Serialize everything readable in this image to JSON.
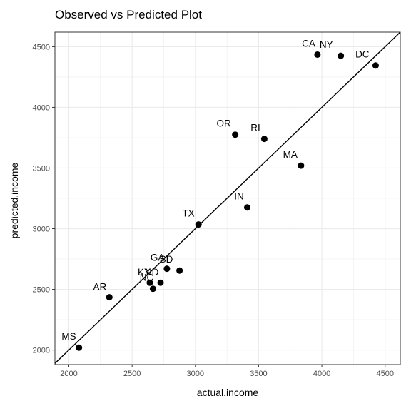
{
  "chart_data": {
    "type": "scatter",
    "title": "Observed vs Predicted Plot",
    "xlabel": "actual.income",
    "ylabel": "predicted.income",
    "xlim": [
      1890,
      4620
    ],
    "ylim": [
      1880,
      4620
    ],
    "x_ticks": [
      2000,
      2500,
      3000,
      3500,
      4000,
      4500
    ],
    "y_ticks": [
      2000,
      2500,
      3000,
      3500,
      4000,
      4500
    ],
    "grid": true,
    "reference_line": "y = x",
    "points": [
      {
        "label": "MS",
        "x": 2080,
        "y": 2020,
        "label_x": 2000,
        "label_y": 2085
      },
      {
        "label": "AR",
        "x": 2320,
        "y": 2435,
        "label_x": 2245,
        "label_y": 2495
      },
      {
        "label": "NC",
        "x": 2665,
        "y": 2505,
        "label_x": 2615,
        "label_y": 2570
      },
      {
        "label": "KY",
        "x": 2640,
        "y": 2555,
        "label_x": 2595,
        "label_y": 2615
      },
      {
        "label": "ND",
        "x": 2725,
        "y": 2555,
        "label_x": 2655,
        "label_y": 2615
      },
      {
        "label": "GA",
        "x": 2775,
        "y": 2670,
        "label_x": 2700,
        "label_y": 2735
      },
      {
        "label": "SD",
        "x": 2875,
        "y": 2655,
        "label_x": 2770,
        "label_y": 2720
      },
      {
        "label": "TX",
        "x": 3025,
        "y": 3035,
        "label_x": 2945,
        "label_y": 3100
      },
      {
        "label": "IN",
        "x": 3410,
        "y": 3175,
        "label_x": 3345,
        "label_y": 3240
      },
      {
        "label": "OR",
        "x": 3315,
        "y": 3775,
        "label_x": 3225,
        "label_y": 3840
      },
      {
        "label": "RI",
        "x": 3545,
        "y": 3740,
        "label_x": 3475,
        "label_y": 3805
      },
      {
        "label": "MA",
        "x": 3835,
        "y": 3520,
        "label_x": 3750,
        "label_y": 3585
      },
      {
        "label": "CA",
        "x": 3965,
        "y": 4435,
        "label_x": 3895,
        "label_y": 4500
      },
      {
        "label": "NY",
        "x": 4150,
        "y": 4425,
        "label_x": 4035,
        "label_y": 4490
      },
      {
        "label": "DC",
        "x": 4425,
        "y": 4345,
        "label_x": 4320,
        "label_y": 4410
      }
    ]
  }
}
